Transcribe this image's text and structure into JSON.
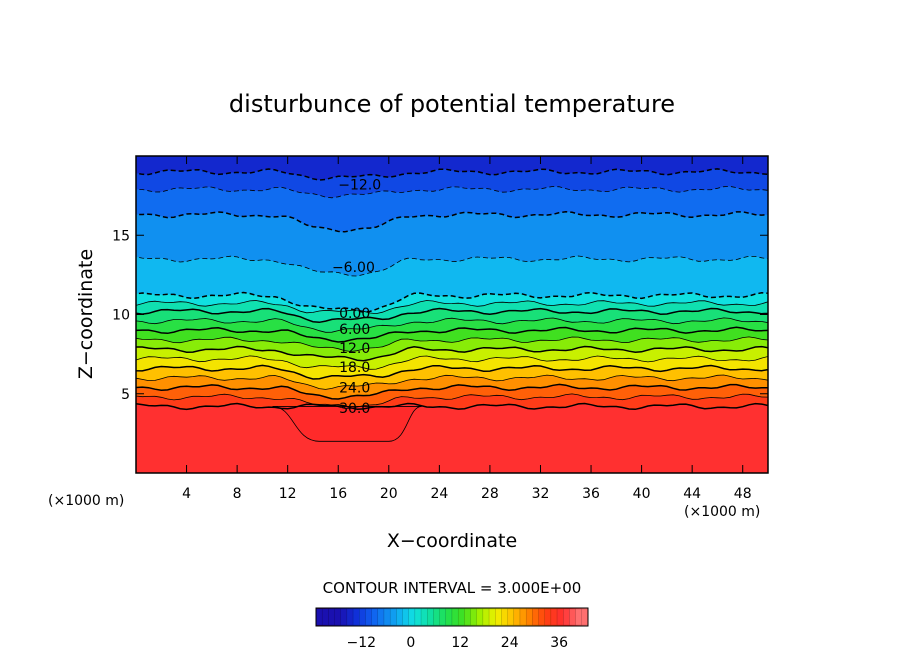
{
  "chart_data": {
    "type": "heatmap",
    "title": "disturbunce of potential temperature",
    "xlabel": "X−coordinate",
    "ylabel": "Z−coordinate",
    "x_unit_left": "(×1000 m)",
    "x_unit_right": "(×1000 m)",
    "xlim": [
      0,
      50
    ],
    "ylim": [
      0,
      20
    ],
    "xticks": [
      4,
      8,
      12,
      16,
      20,
      24,
      28,
      32,
      36,
      40,
      44,
      48
    ],
    "yticks": [
      5,
      10,
      15
    ],
    "contour_interval_text": "CONTOUR INTERVAL = 3.000E+00",
    "colorbar": {
      "min": -23,
      "max": 43,
      "ticks": [
        -12,
        0,
        12,
        24,
        36
      ],
      "tick_labels": [
        "−12",
        "0",
        "12",
        "24",
        "36"
      ]
    },
    "bands": [
      {
        "z": 0,
        "value": 36
      },
      {
        "z": 4.2,
        "value": 33
      },
      {
        "z": 4.8,
        "value": 30
      },
      {
        "z": 5.4,
        "value": 27
      },
      {
        "z": 6.0,
        "value": 24
      },
      {
        "z": 6.6,
        "value": 21
      },
      {
        "z": 7.2,
        "value": 18
      },
      {
        "z": 7.8,
        "value": 15
      },
      {
        "z": 8.4,
        "value": 12
      },
      {
        "z": 9.0,
        "value": 9
      },
      {
        "z": 9.6,
        "value": 6
      },
      {
        "z": 10.2,
        "value": 3
      },
      {
        "z": 10.7,
        "value": 0
      },
      {
        "z": 11.2,
        "value": -3
      },
      {
        "z": 13.5,
        "value": -6
      },
      {
        "z": 16.3,
        "value": -9
      },
      {
        "z": 17.9,
        "value": -12
      },
      {
        "z": 19.0,
        "value": -15
      }
    ],
    "contour_labels": [
      {
        "text": "−12.0",
        "x": 17.7,
        "z": 18.2
      },
      {
        "text": "−6.00",
        "x": 17.2,
        "z": 13.0
      },
      {
        "text": "0.00",
        "x": 17.3,
        "z": 10.1
      },
      {
        "text": "6.00",
        "x": 17.3,
        "z": 9.1
      },
      {
        "text": "12.0",
        "x": 17.3,
        "z": 7.9
      },
      {
        "text": "18.0",
        "x": 17.3,
        "z": 6.7
      },
      {
        "text": "24.0",
        "x": 17.3,
        "z": 5.4
      },
      {
        "text": "30.0",
        "x": 17.3,
        "z": 4.1
      }
    ]
  }
}
